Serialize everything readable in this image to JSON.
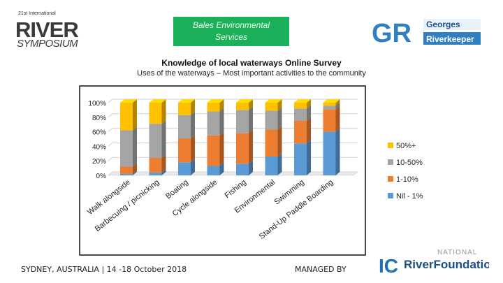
{
  "header": {
    "river_logo_line1": "21st International",
    "river_logo_line2": "RIVER",
    "river_logo_line3": "SYMPOSIUM",
    "bales_line1": "Bales Environmental",
    "bales_line2": "Services",
    "gr_initials": "GR",
    "gr_line1": "Georges",
    "gr_line2": "Riverkeeper"
  },
  "survey": {
    "title": "Knowledge of local waterways Online Survey",
    "subtitle": "Uses of the waterways – Most important activities to the community"
  },
  "footer": {
    "left": "SYDNEY, AUSTRALIA | 14 -18 October 2018",
    "managed_by": "MANAGED BY",
    "rf_national": "NATIONAL",
    "rf_name": "RiverFoundation",
    "rf_initials": "IC"
  },
  "chart_data": {
    "type": "bar",
    "stacked": true,
    "three_d": true,
    "categories": [
      "Walk alongside",
      "Barbecuing / picnicking",
      "Boating",
      "Cycle alongside",
      "Fishing",
      "Environmental",
      "Swimming",
      "Stand-Up Paddle Boarding"
    ],
    "series": [
      {
        "name": "Nil - 1%",
        "color": "#5b9bd5",
        "values": [
          2,
          4,
          18,
          13,
          16,
          26,
          44,
          60
        ]
      },
      {
        "name": "1-10%",
        "color": "#ed7d31",
        "values": [
          10,
          20,
          33,
          42,
          42,
          37,
          31,
          31
        ]
      },
      {
        "name": "10-50%",
        "color": "#a5a5a5",
        "values": [
          50,
          47,
          32,
          33,
          32,
          26,
          17,
          5
        ]
      },
      {
        "name": "50%+",
        "color": "#ffc000",
        "values": [
          38,
          29,
          17,
          12,
          10,
          11,
          8,
          4
        ]
      }
    ],
    "yticks": [
      "0%",
      "20%",
      "40%",
      "60%",
      "80%",
      "100%"
    ],
    "ylim": [
      0,
      100
    ],
    "legend_position": "right",
    "grid": true
  }
}
